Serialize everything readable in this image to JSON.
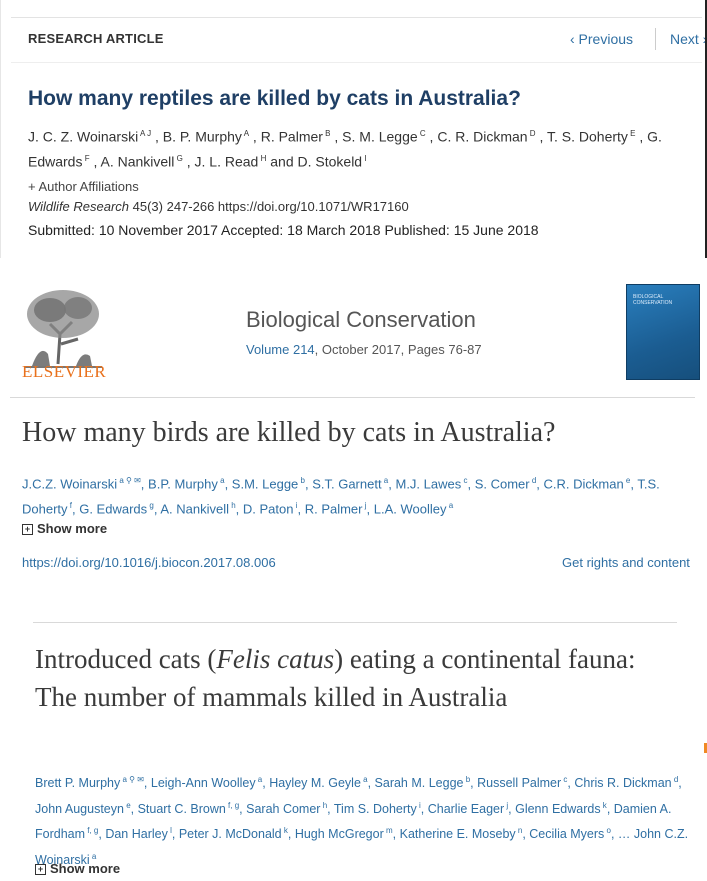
{
  "panel1": {
    "label": "RESEARCH ARTICLE",
    "nav_prev": "‹ Previous",
    "nav_next": "Next ›",
    "title": "How many reptiles are killed by cats in Australia?",
    "authors": [
      {
        "name": "J. C. Z. Woinarski",
        "sup": "A J"
      },
      {
        "name": "B. P. Murphy",
        "sup": "A"
      },
      {
        "name": "R. Palmer",
        "sup": "B"
      },
      {
        "name": "S. M. Legge",
        "sup": "C"
      },
      {
        "name": "C. R. Dickman",
        "sup": "D"
      },
      {
        "name": "T. S. Doherty",
        "sup": "E"
      },
      {
        "name": "G. Edwards",
        "sup": "F"
      },
      {
        "name": "A. Nankivell",
        "sup": "G"
      },
      {
        "name": "J. L. Read",
        "sup": "H"
      },
      {
        "name": "D. Stokeld",
        "sup": "I"
      }
    ],
    "affiliations_link": "+ Author Affiliations",
    "journal_name": "Wildlife Research",
    "journal_rest": " 45(3) 247-266 https://doi.org/10.1071/WR17160",
    "dates": "Submitted: 10 November 2017  Accepted: 18 March 2018  Published: 15 June 2018"
  },
  "panel2": {
    "publisher": "ELSEVIER",
    "journal": "Biological Conservation",
    "volume_link": "Volume 214",
    "volume_rest": ", October 2017, Pages 76-87",
    "cover_text": "BIOLOGICAL CONSERVATION",
    "title": "How many birds are killed by cats in Australia?",
    "authors": [
      {
        "name": "J.C.Z. Woinarski",
        "sup": "a ⚲ ✉"
      },
      {
        "name": "B.P. Murphy",
        "sup": "a"
      },
      {
        "name": "S.M. Legge",
        "sup": "b"
      },
      {
        "name": "S.T. Garnett",
        "sup": "a"
      },
      {
        "name": "M.J. Lawes",
        "sup": "c"
      },
      {
        "name": "S. Comer",
        "sup": "d"
      },
      {
        "name": "C.R. Dickman",
        "sup": "e"
      },
      {
        "name": "T.S. Doherty",
        "sup": "f"
      },
      {
        "name": "G. Edwards",
        "sup": "g"
      },
      {
        "name": "A. Nankivell",
        "sup": "h"
      },
      {
        "name": "D. Paton",
        "sup": "i"
      },
      {
        "name": "R. Palmer",
        "sup": "j"
      },
      {
        "name": "L.A. Woolley",
        "sup": "a"
      }
    ],
    "show_more": "Show more",
    "doi": "https://doi.org/10.1016/j.biocon.2017.08.006",
    "rights": "Get rights and content"
  },
  "panel3": {
    "title_before": "Introduced cats (",
    "title_italic": "Felis catus",
    "title_after": ") eating a continental fauna: The number of mammals killed in Australia",
    "authors": [
      {
        "name": "Brett P. Murphy",
        "sup": "a ⚲ ✉"
      },
      {
        "name": "Leigh-Ann Woolley",
        "sup": "a"
      },
      {
        "name": "Hayley M. Geyle",
        "sup": "a"
      },
      {
        "name": "Sarah M. Legge",
        "sup": "b"
      },
      {
        "name": "Russell Palmer",
        "sup": "c"
      },
      {
        "name": "Chris R. Dickman",
        "sup": "d"
      },
      {
        "name": "John Augusteyn",
        "sup": "e"
      },
      {
        "name": "Stuart C. Brown",
        "sup": "f, g"
      },
      {
        "name": "Sarah Comer",
        "sup": "h"
      },
      {
        "name": "Tim S. Doherty",
        "sup": "i"
      },
      {
        "name": "Charlie Eager",
        "sup": "j"
      },
      {
        "name": "Glenn Edwards",
        "sup": "k"
      },
      {
        "name": "Damien A. Fordham",
        "sup": "f, g"
      },
      {
        "name": "Dan Harley",
        "sup": "l"
      },
      {
        "name": "Peter J. McDonald",
        "sup": "k"
      },
      {
        "name": "Hugh McGregor",
        "sup": "m"
      },
      {
        "name": "Katherine E. Moseby",
        "sup": "n"
      },
      {
        "name": "Cecilia Myers",
        "sup": "o"
      }
    ],
    "authors_tail": "… John C.Z. Woinarski",
    "authors_tail_sup": "a",
    "show_more": "Show more"
  }
}
